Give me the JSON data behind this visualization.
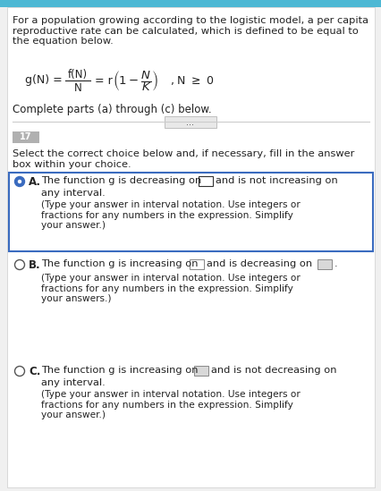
{
  "bg_color": "#f0f0f0",
  "content_bg": "#ffffff",
  "top_bar_color": "#4db8d4",
  "header_text": "For a population growing according to the logistic model, a per capita\nreproductive rate can be calculated, which is defined to be equal to\nthe equation below.",
  "subheader": "Complete parts (a) through (c) below.",
  "divider_dots": "...",
  "instruction": "Select the correct choice below and, if necessary, fill in the answer\nbox within your choice.",
  "option_A_text1": "The function g is decreasing on",
  "option_A_text2": "and is not increasing on",
  "option_A_text3": "any interval.",
  "option_A_subtext": "(Type your answer in interval notation. Use integers or\nfractions for any numbers in the expression. Simplify\nyour answer.)",
  "option_B_text1": "The function g is increasing on",
  "option_B_text2": "and is decreasing on",
  "option_B_text3": ".",
  "option_B_subtext": "(Type your answer in interval notation. Use integers or\nfractions for any numbers in the expression. Simplify\nyour answers.)",
  "option_C_text1": "The function g is increasing on",
  "option_C_text2": "and is not decreasing on",
  "option_C_text3": "any interval.",
  "option_C_subtext": "(Type your answer in interval notation. Use integers or\nfractions for any numbers in the expression. Simplify\nyour answer.)",
  "selected_box_color": "#3a6bbf",
  "option_A_border_color": "#3a6bbf",
  "small_tag_color": "#b0b0b0",
  "small_tag_text": "17"
}
